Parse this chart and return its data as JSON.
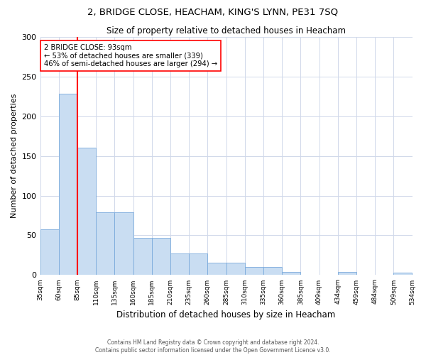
{
  "title": "2, BRIDGE CLOSE, HEACHAM, KING'S LYNN, PE31 7SQ",
  "subtitle": "Size of property relative to detached houses in Heacham",
  "xlabel": "Distribution of detached houses by size in Heacham",
  "ylabel": "Number of detached properties",
  "bins": [
    "35sqm",
    "60sqm",
    "85sqm",
    "110sqm",
    "135sqm",
    "160sqm",
    "185sqm",
    "210sqm",
    "235sqm",
    "260sqm",
    "285sqm",
    "310sqm",
    "335sqm",
    "360sqm",
    "385sqm",
    "409sqm",
    "434sqm",
    "459sqm",
    "484sqm",
    "509sqm",
    "534sqm"
  ],
  "bar_heights": [
    58,
    228,
    160,
    79,
    79,
    47,
    47,
    27,
    27,
    16,
    16,
    10,
    10,
    4,
    0,
    0,
    4,
    0,
    0,
    3
  ],
  "bar_color": "#c9ddf2",
  "bar_edge_color": "#7aaadc",
  "red_line_x": 2,
  "annotation_line1": "2 BRIDGE CLOSE: 93sqm",
  "annotation_line2": "← 53% of detached houses are smaller (339)",
  "annotation_line3": "46% of semi-detached houses are larger (294) →",
  "ylim": [
    0,
    300
  ],
  "yticks": [
    0,
    50,
    100,
    150,
    200,
    250,
    300
  ],
  "footer1": "Contains HM Land Registry data © Crown copyright and database right 2024.",
  "footer2": "Contains public sector information licensed under the Open Government Licence v3.0.",
  "bg_color": "#ffffff",
  "grid_color": "#d0d8ea"
}
